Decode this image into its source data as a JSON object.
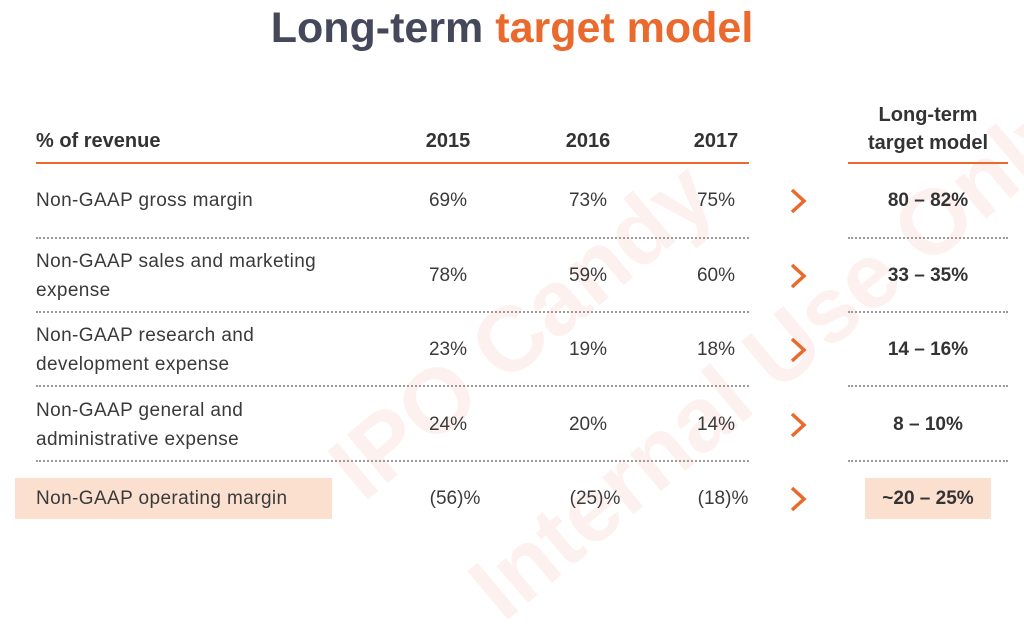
{
  "title": {
    "main": "Long-term",
    "accent": "target model"
  },
  "watermark": [
    "IPO Candy",
    "Internal Use Only"
  ],
  "header": {
    "label": "% of revenue",
    "years": [
      "2015",
      "2016",
      "2017"
    ],
    "target_line1": "Long-term",
    "target_line2": "target model"
  },
  "rows": [
    {
      "label_line1": "Non-GAAP gross margin",
      "label_line2": "",
      "v2015": "69%",
      "v2016": "73%",
      "v2017": "75%",
      "target": "80 – 82%"
    },
    {
      "label_line1": "Non-GAAP sales and marketing",
      "label_line2": "expense",
      "v2015": "78%",
      "v2016": "59%",
      "v2017": "60%",
      "target": "33 – 35%"
    },
    {
      "label_line1": "Non-GAAP research and",
      "label_line2": "development expense",
      "v2015": "23%",
      "v2016": "19%",
      "v2017": "18%",
      "target": "14 – 16%"
    },
    {
      "label_line1": "Non-GAAP general and",
      "label_line2": "administrative expense",
      "v2015": "24%",
      "v2016": "20%",
      "v2017": "14%",
      "target": "8 – 10%"
    },
    {
      "label_line1": "Non-GAAP operating margin",
      "label_line2": "",
      "v2015": "(56)%",
      "v2016": "(25)%",
      "v2017": "(18)%",
      "target": "~20 – 25%"
    }
  ],
  "colors": {
    "accent": "#ea6a2e",
    "title": "#44485a",
    "highlight": "#fbe0d0"
  },
  "icons": {
    "arrow": "chevron-right-icon"
  }
}
